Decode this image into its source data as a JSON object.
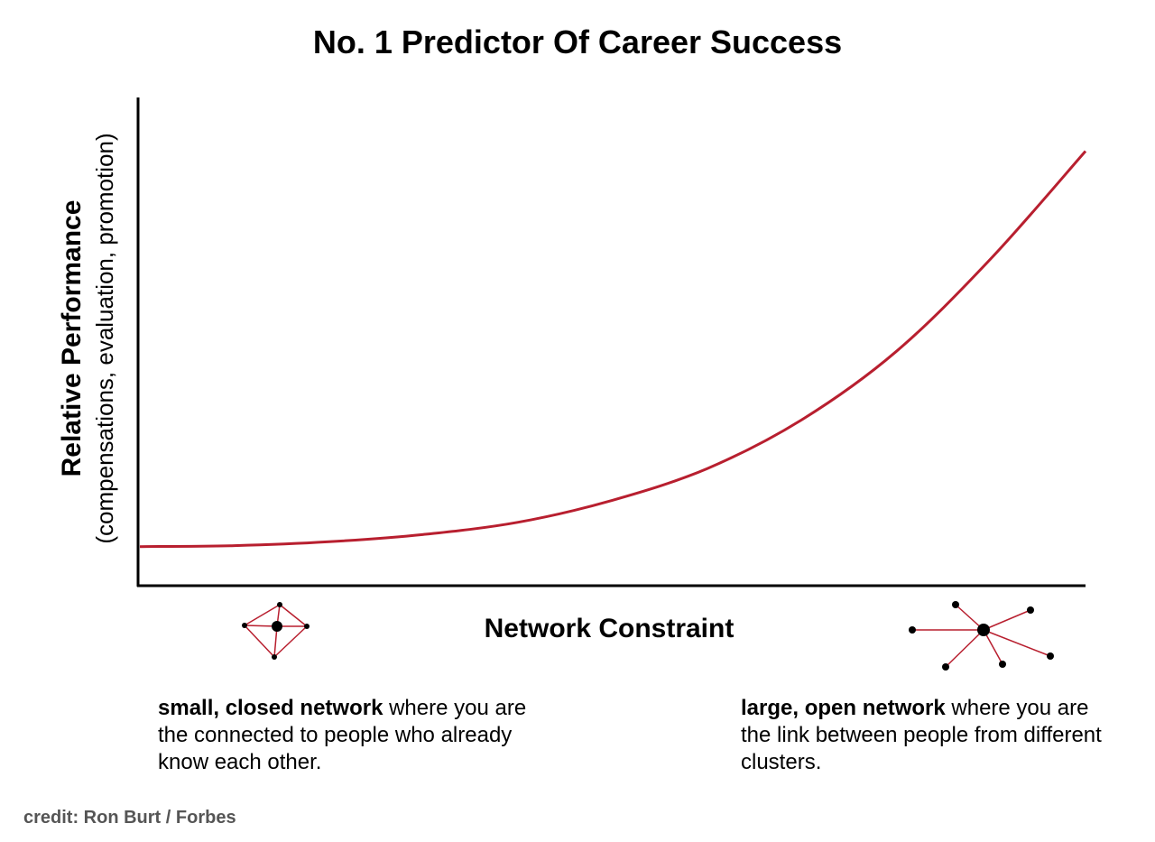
{
  "chart_data": {
    "type": "line",
    "title": "No. 1 Predictor Of Career Success",
    "ylabel": "Relative Performance",
    "ylabel_sub": "(compensations, evaluation, promotion)",
    "xlabel": "Network Constraint",
    "series_color": "#b81f2f",
    "grid": false,
    "x": [
      0,
      0.1,
      0.2,
      0.3,
      0.4,
      0.5,
      0.6,
      0.7,
      0.8,
      0.9,
      1.0
    ],
    "values": [
      0.08,
      0.082,
      0.09,
      0.105,
      0.13,
      0.175,
      0.24,
      0.34,
      0.48,
      0.67,
      0.89
    ],
    "xlim": [
      0,
      1
    ],
    "ylim": [
      0,
      1
    ]
  },
  "annotations": {
    "left": {
      "bold": "small, closed network",
      "text": " where you are the connected to people who already know each other."
    },
    "right": {
      "bold": "large, open network",
      "text": " where you are the link between people from different clusters."
    }
  },
  "icons": {
    "left": "closed-network-icon",
    "right": "open-network-icon"
  },
  "credit": "credit: Ron Burt / Forbes"
}
